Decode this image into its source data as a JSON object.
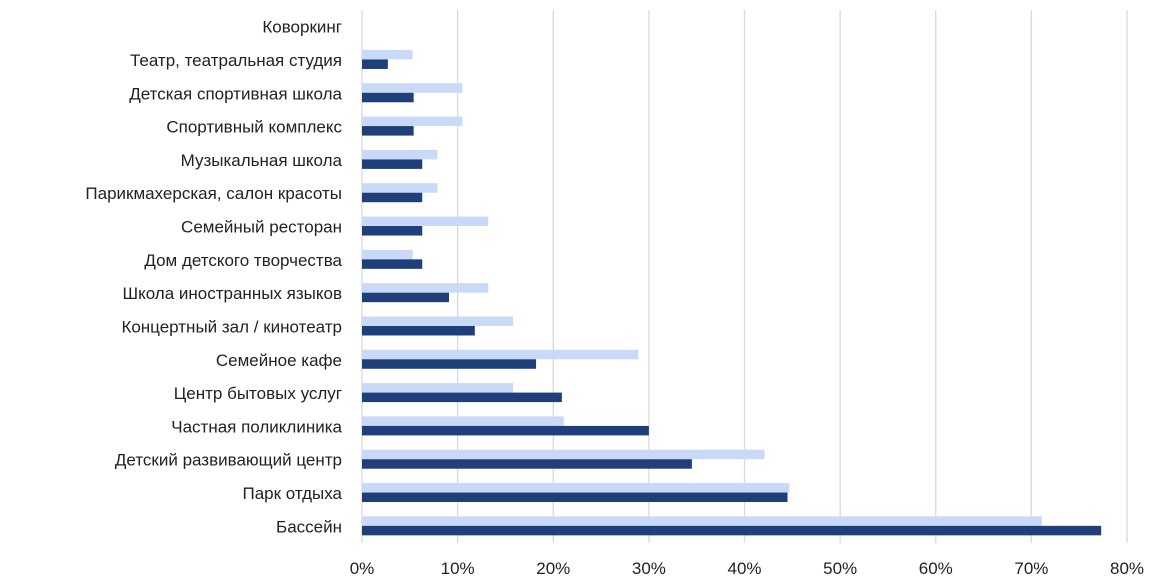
{
  "chart_data": {
    "type": "bar",
    "orientation": "horizontal",
    "categories": [
      "Коворкинг",
      "Театр, театральная студия",
      "Детская спортивная школа",
      "Спортивный комплекс",
      "Музыкальная школа",
      "Парикмахерская, салон красоты",
      "Семейный ресторан",
      "Дом детского творчества",
      "Школа иностранных языков",
      "Концертный зал / кинотеатр",
      "Семейное кафе",
      "Центр бытовых услуг",
      "Частная поликлиника",
      "Детский развивающий центр",
      "Парк отдыха",
      "Бассейн"
    ],
    "series": [
      {
        "color": "#c9daf8",
        "values": [
          0,
          5.3,
          10.5,
          10.5,
          7.9,
          7.9,
          13.2,
          5.3,
          13.2,
          15.8,
          28.9,
          15.8,
          21.1,
          42.1,
          44.7,
          71.1
        ]
      },
      {
        "color": "#1f3f7a",
        "values": [
          0,
          2.7,
          5.4,
          5.4,
          6.3,
          6.3,
          6.3,
          6.3,
          9.1,
          11.8,
          18.2,
          20.9,
          30.0,
          34.5,
          44.5,
          77.3
        ]
      }
    ],
    "xlim": [
      0,
      80
    ],
    "xticks": [
      "0%",
      "10%",
      "20%",
      "30%",
      "40%",
      "50%",
      "60%",
      "70%",
      "80%"
    ],
    "grid": true,
    "legend": "none"
  }
}
